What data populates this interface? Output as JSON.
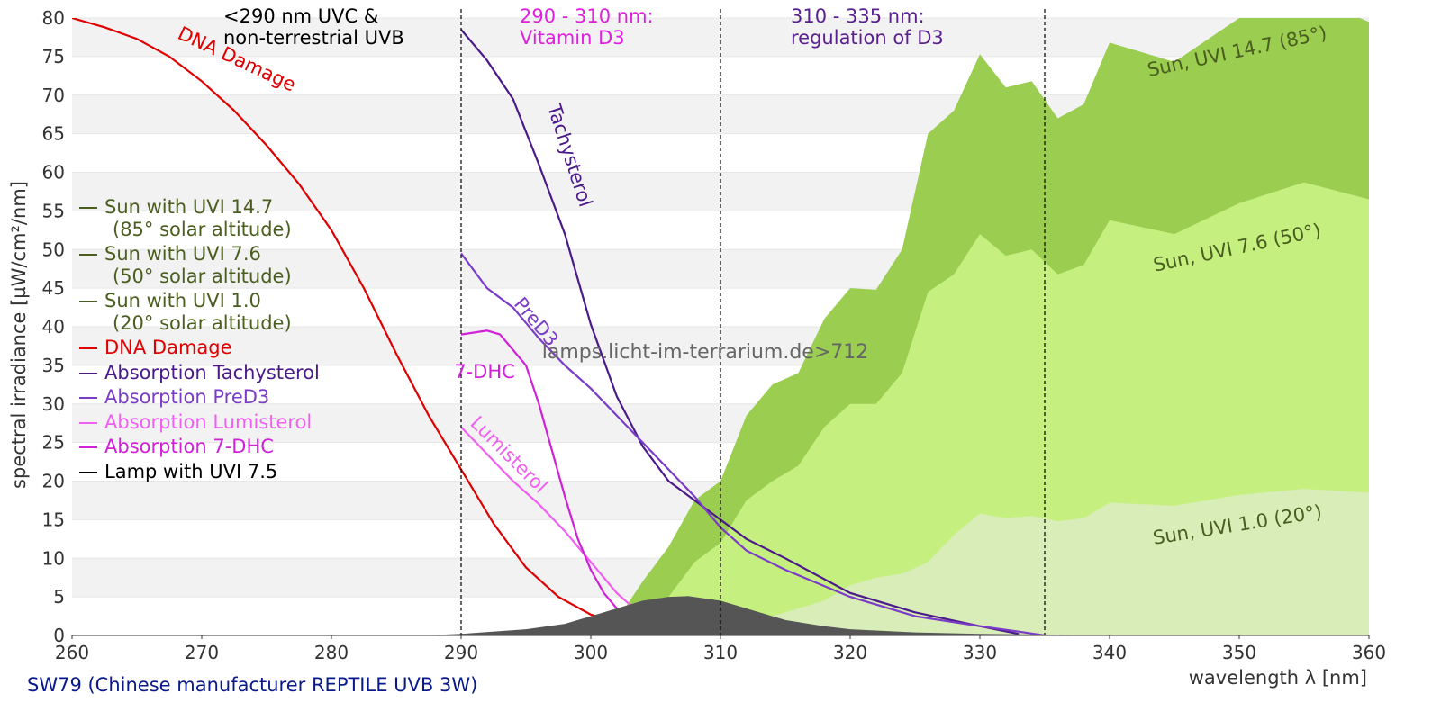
{
  "chart_data": {
    "type": "line",
    "title": "SW79 (Chinese manufacturer REPTILE UVB 3W)",
    "x_label": "wavelength λ [nm]",
    "y_label": "spectral irradiance [µW/cm²/nm]",
    "xlim": [
      260,
      360
    ],
    "xticks": [
      260,
      270,
      280,
      290,
      300,
      310,
      320,
      330,
      340,
      350,
      360
    ],
    "ylim": [
      0,
      80
    ],
    "yticks": [
      0,
      5,
      10,
      15,
      20,
      25,
      30,
      35,
      40,
      45,
      50,
      55,
      60,
      65,
      70,
      75,
      80
    ],
    "grid": "bands",
    "regions": [
      {
        "x": 290,
        "label": "<290 nm UVC &\nnon-terrestrial UVB",
        "color": "#000000"
      },
      {
        "x": 310,
        "label": "290 - 310 nm:\nVitamin D3",
        "color": "#e020e0"
      },
      {
        "x": 335,
        "label": "310 - 335 nm:\nregulation of D3",
        "color": "#5b2090"
      }
    ],
    "watermark": "lamps.licht-im-terrarium.de>712",
    "series": [
      {
        "name": "Sun with UVI 14.7\n(85° solar altitude)",
        "kind": "area",
        "color": "#9acd50",
        "label_color": "#4a5e20",
        "x": [
          300,
          302,
          304,
          306,
          308,
          310,
          312,
          314,
          316,
          318,
          320,
          322,
          324,
          326,
          328,
          330,
          332,
          334,
          336,
          338,
          340,
          345,
          350,
          355,
          360
        ],
        "values": [
          0,
          2,
          7,
          11.5,
          17.5,
          20,
          28.5,
          32.5,
          34,
          41,
          45,
          44.8,
          50,
          65,
          68,
          75.3,
          71,
          71.8,
          67,
          68.8,
          76.8,
          74.3,
          80,
          83,
          79.5
        ]
      },
      {
        "name": "Sun with UVI 7.6\n(50° solar altitude)",
        "kind": "area",
        "color": "#c5f07f",
        "label_color": "#4a5e20",
        "x": [
          300,
          302,
          304,
          306,
          308,
          310,
          312,
          314,
          316,
          318,
          320,
          322,
          324,
          326,
          328,
          330,
          332,
          334,
          336,
          338,
          340,
          345,
          350,
          355,
          360
        ],
        "values": [
          0,
          0.5,
          2.5,
          5,
          9.5,
          12,
          17.5,
          20,
          22,
          27,
          30,
          30,
          34,
          44.5,
          46.8,
          52,
          49.2,
          50,
          46.8,
          48,
          53.8,
          52,
          56,
          58.7,
          56.5
        ]
      },
      {
        "name": "Sun with UVI 1.0\n(20° solar altitude)",
        "kind": "area",
        "color": "#d8edb8",
        "label_color": "#4a5e20",
        "x": [
          300,
          302,
          304,
          306,
          308,
          310,
          312,
          314,
          316,
          318,
          320,
          322,
          324,
          326,
          328,
          330,
          332,
          334,
          336,
          338,
          340,
          345,
          350,
          355,
          360
        ],
        "values": [
          0,
          0,
          0.2,
          0.5,
          0.8,
          1.2,
          2,
          2.5,
          3.5,
          4.5,
          6.5,
          7.5,
          8,
          9.5,
          13,
          15.8,
          15.2,
          15.5,
          14.8,
          15.2,
          17.2,
          16.8,
          18.2,
          19,
          18.5
        ]
      },
      {
        "name": "DNA Damage",
        "kind": "line",
        "color": "#e00000",
        "label_color": "#e00000",
        "x": [
          260,
          262.5,
          265,
          267.5,
          270,
          272.5,
          275,
          277.5,
          280,
          282.5,
          285,
          287.5,
          290,
          292.5,
          295,
          297.5,
          300,
          302.5,
          305,
          307.5,
          310
        ],
        "values": [
          80,
          78.8,
          77.3,
          75,
          71.8,
          68,
          63.5,
          58.5,
          52.5,
          45,
          36.5,
          28.5,
          21.5,
          14.5,
          8.8,
          5,
          2.7,
          1.4,
          0.7,
          0.35,
          0.15
        ]
      },
      {
        "name": "Absorption Tachysterol",
        "kind": "line",
        "color": "#4b1a8a",
        "label_color": "#4b1a8a",
        "x": [
          290,
          292,
          294,
          296,
          298,
          300,
          302,
          304,
          306,
          308,
          310,
          312,
          315,
          320,
          325,
          330,
          333
        ],
        "values": [
          78.5,
          74.5,
          69.5,
          61,
          52,
          40.3,
          31,
          24.5,
          20,
          17.5,
          15,
          12.5,
          10,
          5.5,
          3,
          1.2,
          0.2
        ]
      },
      {
        "name": "Absorption PreD3",
        "kind": "line",
        "color": "#7b3cc8",
        "label_color": "#7b3cc8",
        "x": [
          290,
          292,
          294,
          296,
          298,
          300,
          302,
          304,
          306,
          308,
          310,
          312,
          315,
          320,
          325,
          330,
          333,
          335
        ],
        "values": [
          49.5,
          45,
          42.5,
          38.5,
          35,
          32,
          28.5,
          25,
          21.5,
          18,
          14,
          11,
          8.5,
          5,
          2.5,
          1.2,
          0.5,
          0
        ]
      },
      {
        "name": "Absorption Lumisterol",
        "kind": "line",
        "color": "#f060f0",
        "label_color": "#f060f0",
        "x": [
          290,
          292,
          294,
          296,
          298,
          300,
          302,
          304,
          306,
          310,
          314
        ],
        "values": [
          27,
          23.5,
          20,
          17,
          13.5,
          9.5,
          5.5,
          2.5,
          1,
          0.3,
          0
        ]
      },
      {
        "name": "Absorption 7-DHC",
        "kind": "line",
        "color": "#d020d8",
        "label_color": "#d020d8",
        "x": [
          290,
          292,
          293,
          295,
          296,
          297,
          298,
          299,
          300,
          301,
          302,
          303,
          305,
          308,
          312
        ],
        "values": [
          39,
          39.5,
          39,
          35,
          30,
          24,
          18,
          12.5,
          8.5,
          5.5,
          3.5,
          2,
          0.8,
          0.3,
          0
        ]
      },
      {
        "name": "Lamp with UVI 7.5",
        "kind": "area",
        "color": "#555555",
        "label_color": "#000000",
        "x": [
          287,
          290,
          295,
          298,
          300,
          302,
          304,
          306,
          307.5,
          310,
          312,
          315,
          318,
          320,
          325,
          330,
          335,
          340
        ],
        "values": [
          0,
          0.2,
          0.8,
          1.5,
          2.5,
          3.5,
          4.5,
          5,
          5.1,
          4.5,
          3.5,
          2,
          1.2,
          0.8,
          0.4,
          0.2,
          0.1,
          0
        ]
      }
    ],
    "annotations": [
      {
        "text": "DNA Damage",
        "color": "#e00000"
      },
      {
        "text": "Tachysterol",
        "color": "#4b1a8a"
      },
      {
        "text": "PreD3",
        "color": "#7b3cc8"
      },
      {
        "text": "7-DHC",
        "color": "#d020d8"
      },
      {
        "text": "Lumisterol",
        "color": "#f060f0"
      },
      {
        "text": "Sun, UVI 14.7 (85°)",
        "color": "#4a5e20"
      },
      {
        "text": "Sun, UVI 7.6 (50°)",
        "color": "#4a5e20"
      },
      {
        "text": "Sun, UVI 1.0 (20°)",
        "color": "#4a5e20"
      }
    ]
  }
}
